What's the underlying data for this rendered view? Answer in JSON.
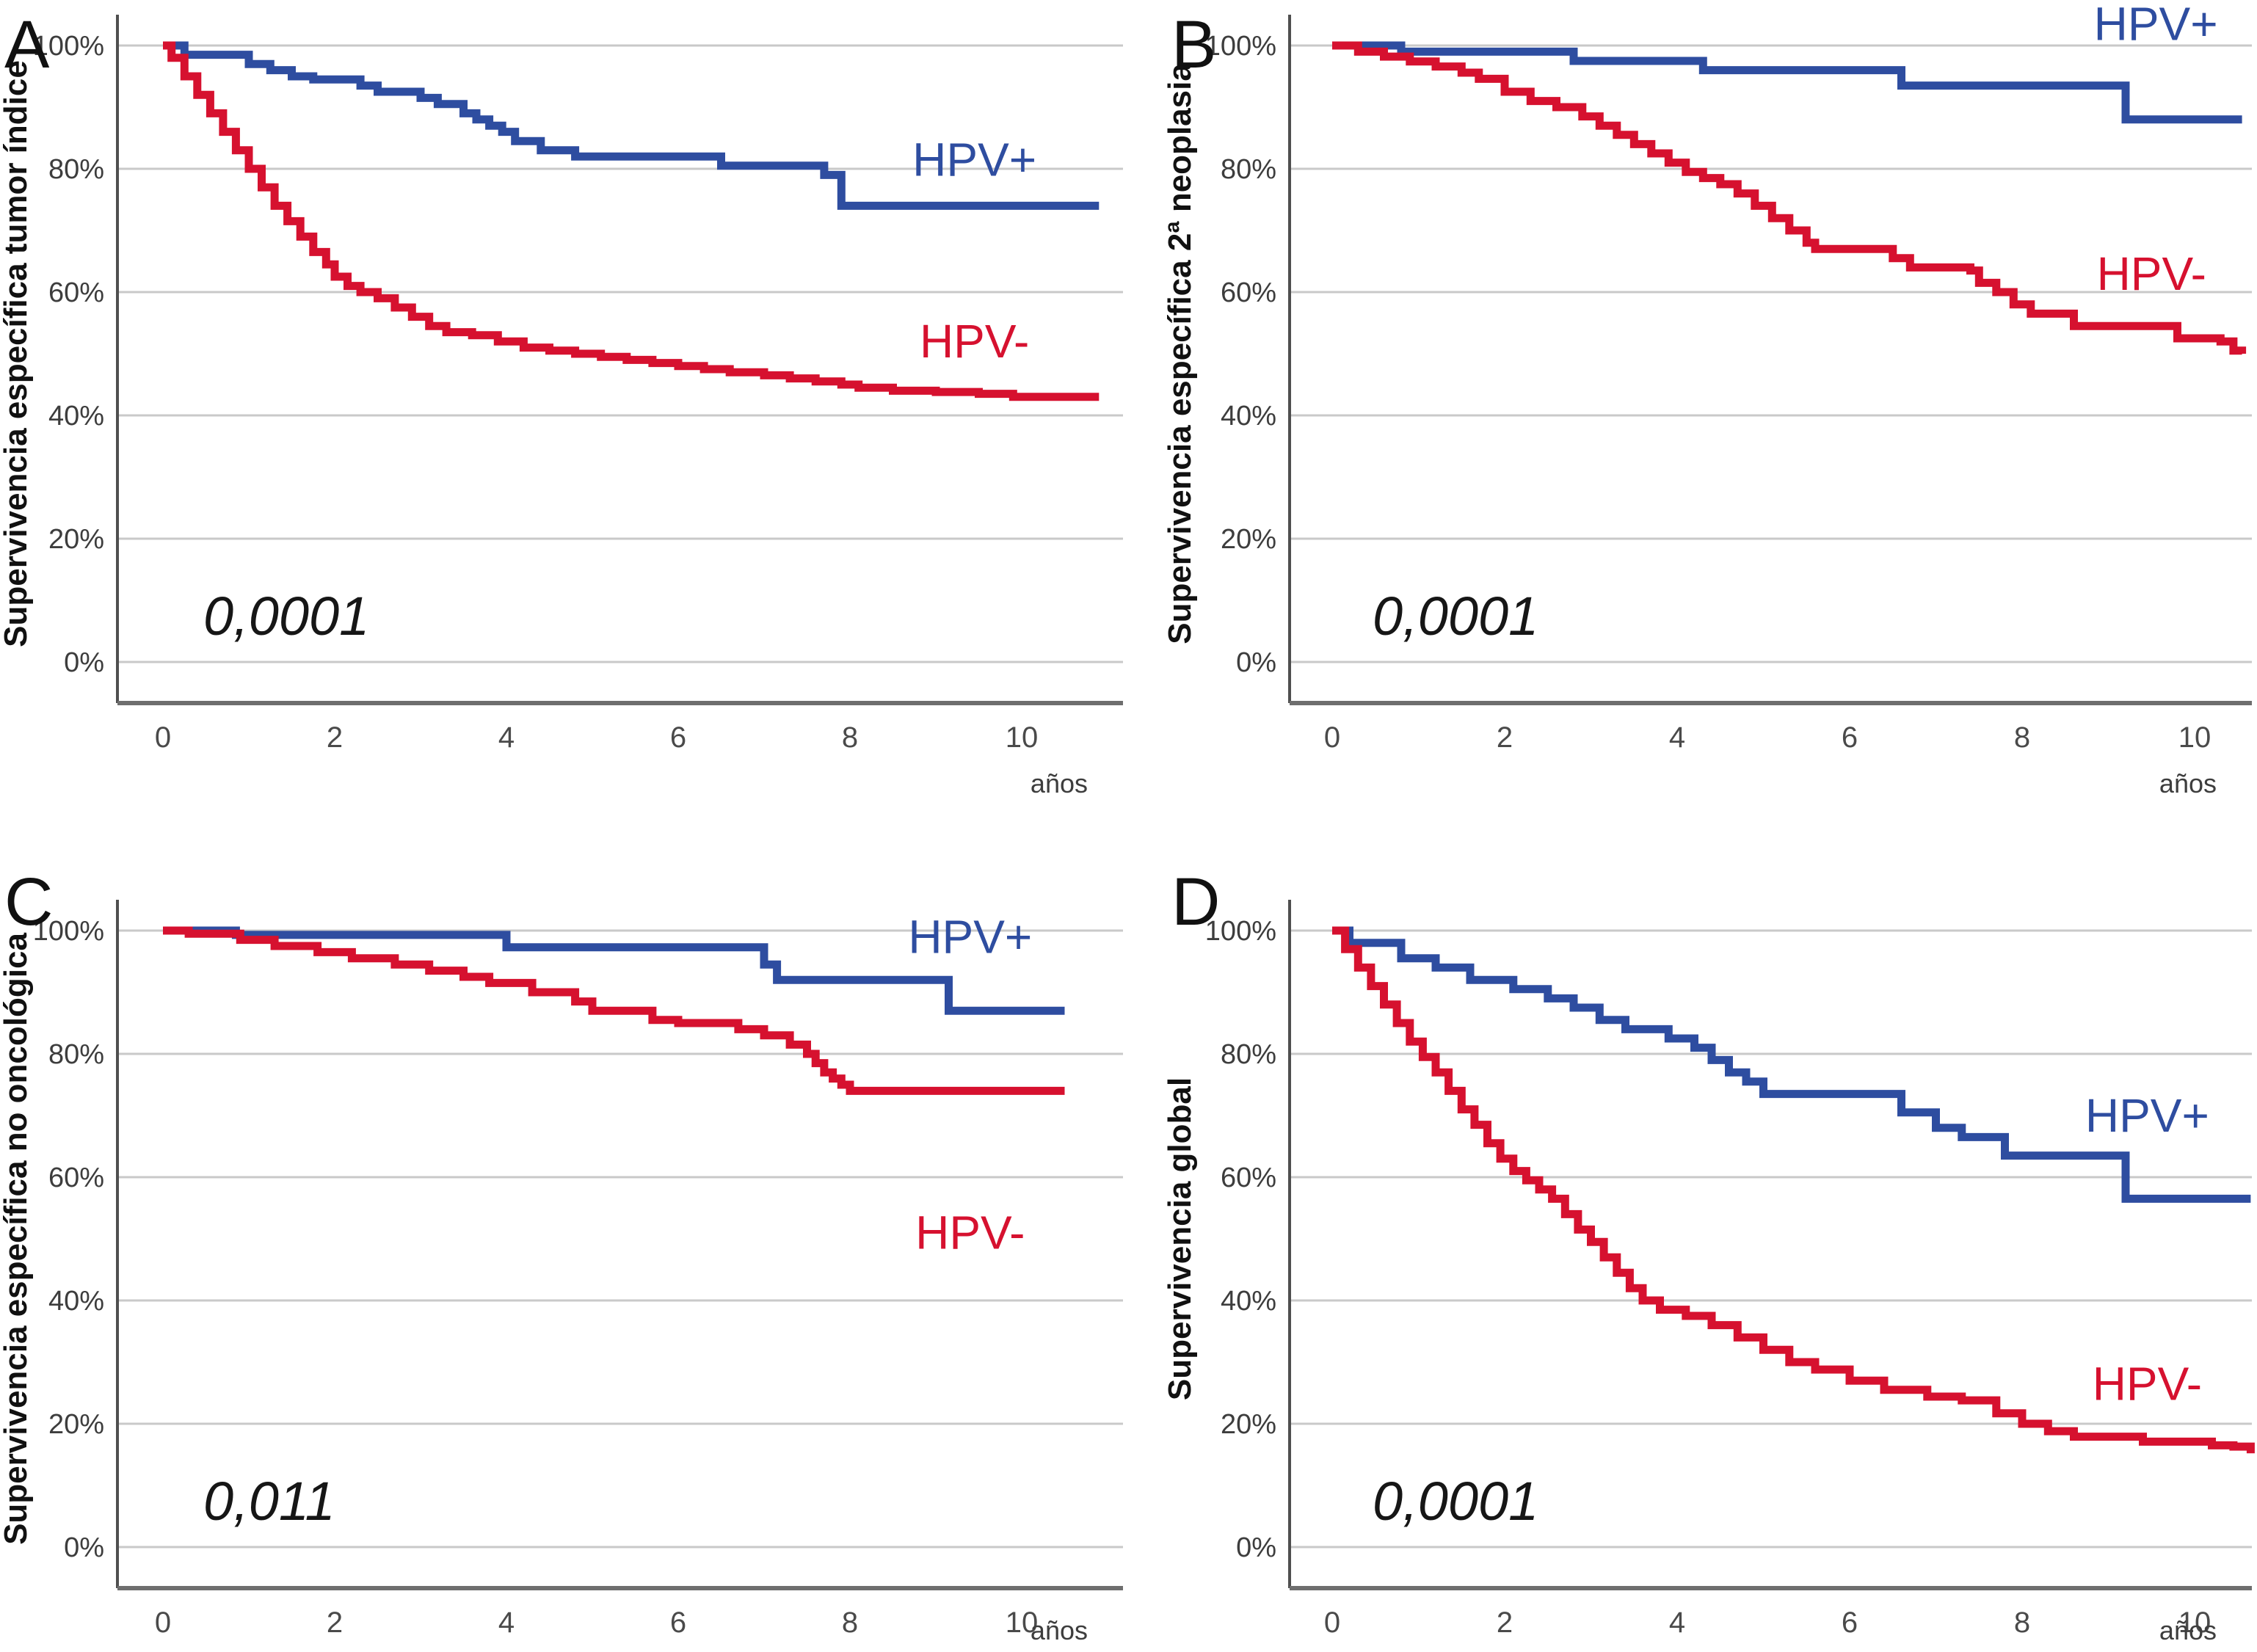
{
  "page": {
    "background": "#ffffff"
  },
  "colors": {
    "hpv_positive": "#2e4da0",
    "hpv_negative": "#d6112f",
    "gridline": "#c9c9c9",
    "axis": "#6e6e6e",
    "text": "#161616"
  },
  "chart_data": [
    {
      "panel_label": "A",
      "type": "line",
      "subtype": "kaplan-meier-step",
      "title": "",
      "ylabel": "Supervivencia específica tumor índice",
      "xlabel": "años",
      "p_value": "0,0001",
      "x_ticks": [
        0,
        2,
        4,
        6,
        8,
        10
      ],
      "y_ticks": [
        "100%",
        "80%",
        "60%",
        "40%",
        "20%",
        "0%"
      ],
      "xlim": [
        0,
        11.2
      ],
      "ylim": [
        0,
        105
      ],
      "grid": true,
      "legend_position": "inline-annotations",
      "series": [
        {
          "name": "HPV+",
          "label": "HPV+",
          "color": "#2e4da0",
          "annotation_at": {
            "year": 9.45,
            "pct": 81.5
          },
          "steps": [
            [
              0,
              100
            ],
            [
              0.25,
              98.5
            ],
            [
              1.0,
              97
            ],
            [
              1.25,
              96
            ],
            [
              1.5,
              95
            ],
            [
              1.75,
              94.5
            ],
            [
              2.3,
              93.5
            ],
            [
              2.5,
              92.5
            ],
            [
              3.0,
              91.5
            ],
            [
              3.2,
              90.5
            ],
            [
              3.5,
              89
            ],
            [
              3.65,
              88
            ],
            [
              3.8,
              87
            ],
            [
              3.95,
              86
            ],
            [
              4.1,
              84.5
            ],
            [
              4.4,
              83
            ],
            [
              4.8,
              82
            ],
            [
              6.5,
              80.5
            ],
            [
              7.7,
              79
            ],
            [
              7.9,
              74
            ],
            [
              10.9,
              74
            ]
          ]
        },
        {
          "name": "HPV-",
          "label": "HPV-",
          "color": "#d6112f",
          "annotation_at": {
            "year": 9.45,
            "pct": 52
          },
          "steps": [
            [
              0,
              100
            ],
            [
              0.1,
              98
            ],
            [
              0.25,
              95
            ],
            [
              0.4,
              92
            ],
            [
              0.55,
              89
            ],
            [
              0.7,
              86
            ],
            [
              0.85,
              83
            ],
            [
              1.0,
              80
            ],
            [
              1.15,
              77
            ],
            [
              1.3,
              74
            ],
            [
              1.45,
              71.5
            ],
            [
              1.6,
              69
            ],
            [
              1.75,
              66.5
            ],
            [
              1.9,
              64.5
            ],
            [
              2.0,
              62.5
            ],
            [
              2.15,
              61
            ],
            [
              2.3,
              60
            ],
            [
              2.5,
              59
            ],
            [
              2.7,
              57.5
            ],
            [
              2.9,
              56
            ],
            [
              3.1,
              54.5
            ],
            [
              3.3,
              53.5
            ],
            [
              3.6,
              53
            ],
            [
              3.9,
              52
            ],
            [
              4.2,
              51
            ],
            [
              4.5,
              50.5
            ],
            [
              4.8,
              50
            ],
            [
              5.1,
              49.5
            ],
            [
              5.4,
              49
            ],
            [
              5.7,
              48.5
            ],
            [
              6.0,
              48
            ],
            [
              6.3,
              47.5
            ],
            [
              6.6,
              47
            ],
            [
              7.0,
              46.5
            ],
            [
              7.3,
              46
            ],
            [
              7.6,
              45.5
            ],
            [
              7.9,
              45
            ],
            [
              8.1,
              44.5
            ],
            [
              8.5,
              44
            ],
            [
              9.0,
              43.8
            ],
            [
              9.5,
              43.5
            ],
            [
              9.9,
              43
            ],
            [
              10.9,
              43
            ]
          ]
        }
      ]
    },
    {
      "panel_label": "B",
      "type": "line",
      "subtype": "kaplan-meier-step",
      "title": "",
      "ylabel": "Supervivencia específica 2ª neoplasia",
      "xlabel": "años",
      "p_value": "0,0001",
      "x_ticks": [
        0,
        2,
        4,
        6,
        8,
        10
      ],
      "y_ticks": [
        "100%",
        "80%",
        "60%",
        "40%",
        "20%",
        "0%"
      ],
      "xlim": [
        0,
        10.7
      ],
      "ylim": [
        0,
        105
      ],
      "grid": true,
      "legend_position": "inline-annotations",
      "series": [
        {
          "name": "HPV+",
          "label": "HPV+",
          "color": "#2e4da0",
          "annotation_at": {
            "year": 9.55,
            "pct": 103.5
          },
          "steps": [
            [
              0,
              100
            ],
            [
              0.8,
              99
            ],
            [
              2.8,
              97.5
            ],
            [
              4.3,
              96
            ],
            [
              6.6,
              93.5
            ],
            [
              9.2,
              88
            ],
            [
              10.55,
              88
            ]
          ]
        },
        {
          "name": "HPV-",
          "label": "HPV-",
          "color": "#d6112f",
          "annotation_at": {
            "year": 9.5,
            "pct": 63
          },
          "steps": [
            [
              0,
              100
            ],
            [
              0.3,
              99
            ],
            [
              0.6,
              98.2
            ],
            [
              0.9,
              97.4
            ],
            [
              1.2,
              96.6
            ],
            [
              1.5,
              95.6
            ],
            [
              1.7,
              94.6
            ],
            [
              2.0,
              92.5
            ],
            [
              2.3,
              91
            ],
            [
              2.6,
              90
            ],
            [
              2.9,
              88.5
            ],
            [
              3.1,
              87
            ],
            [
              3.3,
              85.5
            ],
            [
              3.5,
              84
            ],
            [
              3.7,
              82.5
            ],
            [
              3.9,
              81
            ],
            [
              4.1,
              79.5
            ],
            [
              4.3,
              78.5
            ],
            [
              4.5,
              77.5
            ],
            [
              4.7,
              76
            ],
            [
              4.9,
              74
            ],
            [
              5.1,
              72
            ],
            [
              5.3,
              70
            ],
            [
              5.5,
              68
            ],
            [
              5.6,
              67
            ],
            [
              6.3,
              67
            ],
            [
              6.5,
              65.5
            ],
            [
              6.7,
              64
            ],
            [
              7.4,
              63.5
            ],
            [
              7.5,
              61.5
            ],
            [
              7.7,
              60
            ],
            [
              7.9,
              58
            ],
            [
              8.1,
              56.5
            ],
            [
              8.6,
              54.5
            ],
            [
              9.8,
              52.5
            ],
            [
              10.3,
              52
            ],
            [
              10.45,
              50.5
            ],
            [
              10.55,
              50
            ]
          ]
        }
      ]
    },
    {
      "panel_label": "C",
      "type": "line",
      "subtype": "kaplan-meier-step",
      "title": "",
      "ylabel": "Supervivencia específica no oncológica",
      "xlabel": "años",
      "p_value": "0,011",
      "x_ticks": [
        0,
        2,
        4,
        6,
        8,
        10
      ],
      "y_ticks": [
        "100%",
        "80%",
        "60%",
        "40%",
        "20%",
        "0%"
      ],
      "xlim": [
        0,
        10.6
      ],
      "ylim": [
        0,
        105
      ],
      "grid": true,
      "legend_position": "inline-annotations",
      "series": [
        {
          "name": "HPV+",
          "label": "HPV+",
          "color": "#2e4da0",
          "annotation_at": {
            "year": 9.4,
            "pct": 99
          },
          "steps": [
            [
              0,
              100
            ],
            [
              0.85,
              99.3
            ],
            [
              4.0,
              97.3
            ],
            [
              7.0,
              94.5
            ],
            [
              7.15,
              92
            ],
            [
              9.15,
              87
            ],
            [
              10.5,
              87
            ]
          ]
        },
        {
          "name": "HPV-",
          "label": "HPV-",
          "color": "#d6112f",
          "annotation_at": {
            "year": 9.4,
            "pct": 51
          },
          "steps": [
            [
              0,
              100
            ],
            [
              0.3,
              99.5
            ],
            [
              0.9,
              98.5
            ],
            [
              1.3,
              97.5
            ],
            [
              1.8,
              96.5
            ],
            [
              2.2,
              95.5
            ],
            [
              2.7,
              94.5
            ],
            [
              3.1,
              93.5
            ],
            [
              3.5,
              92.5
            ],
            [
              3.8,
              91.5
            ],
            [
              4.3,
              90
            ],
            [
              4.8,
              88.5
            ],
            [
              5.0,
              87
            ],
            [
              5.7,
              85.5
            ],
            [
              6.0,
              85
            ],
            [
              6.7,
              84
            ],
            [
              7.0,
              83
            ],
            [
              7.3,
              81.5
            ],
            [
              7.5,
              80
            ],
            [
              7.6,
              78.5
            ],
            [
              7.7,
              77
            ],
            [
              7.8,
              76
            ],
            [
              7.9,
              75
            ],
            [
              8.0,
              74
            ],
            [
              10.5,
              74
            ]
          ]
        }
      ]
    },
    {
      "panel_label": "D",
      "type": "line",
      "subtype": "kaplan-meier-step",
      "title": "",
      "ylabel": "Supervivencia global",
      "xlabel": "años",
      "p_value": "0,0001",
      "x_ticks": [
        0,
        2,
        4,
        6,
        8,
        10
      ],
      "y_ticks": [
        "100%",
        "80%",
        "60%",
        "40%",
        "20%",
        "0%"
      ],
      "xlim": [
        0,
        10.7
      ],
      "ylim": [
        0,
        105
      ],
      "grid": true,
      "legend_position": "inline-annotations",
      "series": [
        {
          "name": "HPV+",
          "label": "HPV+",
          "color": "#2e4da0",
          "annotation_at": {
            "year": 9.45,
            "pct": 70
          },
          "steps": [
            [
              0,
              100
            ],
            [
              0.2,
              98
            ],
            [
              0.8,
              95.5
            ],
            [
              1.2,
              94
            ],
            [
              1.6,
              92
            ],
            [
              2.1,
              90.5
            ],
            [
              2.5,
              89
            ],
            [
              2.8,
              87.5
            ],
            [
              3.1,
              85.5
            ],
            [
              3.4,
              84
            ],
            [
              3.9,
              82.5
            ],
            [
              4.2,
              81
            ],
            [
              4.4,
              79
            ],
            [
              4.6,
              77
            ],
            [
              4.8,
              75.5
            ],
            [
              5.0,
              73.5
            ],
            [
              6.6,
              70.5
            ],
            [
              7.0,
              68
            ],
            [
              7.3,
              66.5
            ],
            [
              7.8,
              63.5
            ],
            [
              9.2,
              56.5
            ],
            [
              10.65,
              56.5
            ]
          ]
        },
        {
          "name": "HPV-",
          "label": "HPV-",
          "color": "#d6112f",
          "annotation_at": {
            "year": 9.45,
            "pct": 26.5
          },
          "steps": [
            [
              0,
              100
            ],
            [
              0.15,
              97
            ],
            [
              0.3,
              94
            ],
            [
              0.45,
              91
            ],
            [
              0.6,
              88
            ],
            [
              0.75,
              85
            ],
            [
              0.9,
              82
            ],
            [
              1.05,
              79.5
            ],
            [
              1.2,
              77
            ],
            [
              1.35,
              74
            ],
            [
              1.5,
              71
            ],
            [
              1.65,
              68.5
            ],
            [
              1.8,
              65.5
            ],
            [
              1.95,
              63
            ],
            [
              2.1,
              61
            ],
            [
              2.25,
              59.5
            ],
            [
              2.4,
              58
            ],
            [
              2.55,
              56.5
            ],
            [
              2.7,
              54
            ],
            [
              2.85,
              51.5
            ],
            [
              3.0,
              49.5
            ],
            [
              3.15,
              47
            ],
            [
              3.3,
              44.5
            ],
            [
              3.45,
              42
            ],
            [
              3.6,
              40
            ],
            [
              3.8,
              38.5
            ],
            [
              4.1,
              37.5
            ],
            [
              4.4,
              36
            ],
            [
              4.7,
              34
            ],
            [
              5.0,
              32
            ],
            [
              5.3,
              30
            ],
            [
              5.6,
              28.8
            ],
            [
              6.0,
              27
            ],
            [
              6.4,
              25.5
            ],
            [
              6.9,
              24.4
            ],
            [
              7.3,
              23.8
            ],
            [
              7.7,
              21.7
            ],
            [
              8.0,
              20
            ],
            [
              8.3,
              18.8
            ],
            [
              8.6,
              17.9
            ],
            [
              9.4,
              17.1
            ],
            [
              10.2,
              16.5
            ],
            [
              10.45,
              16.3
            ],
            [
              10.65,
              15.2
            ]
          ]
        }
      ]
    }
  ]
}
